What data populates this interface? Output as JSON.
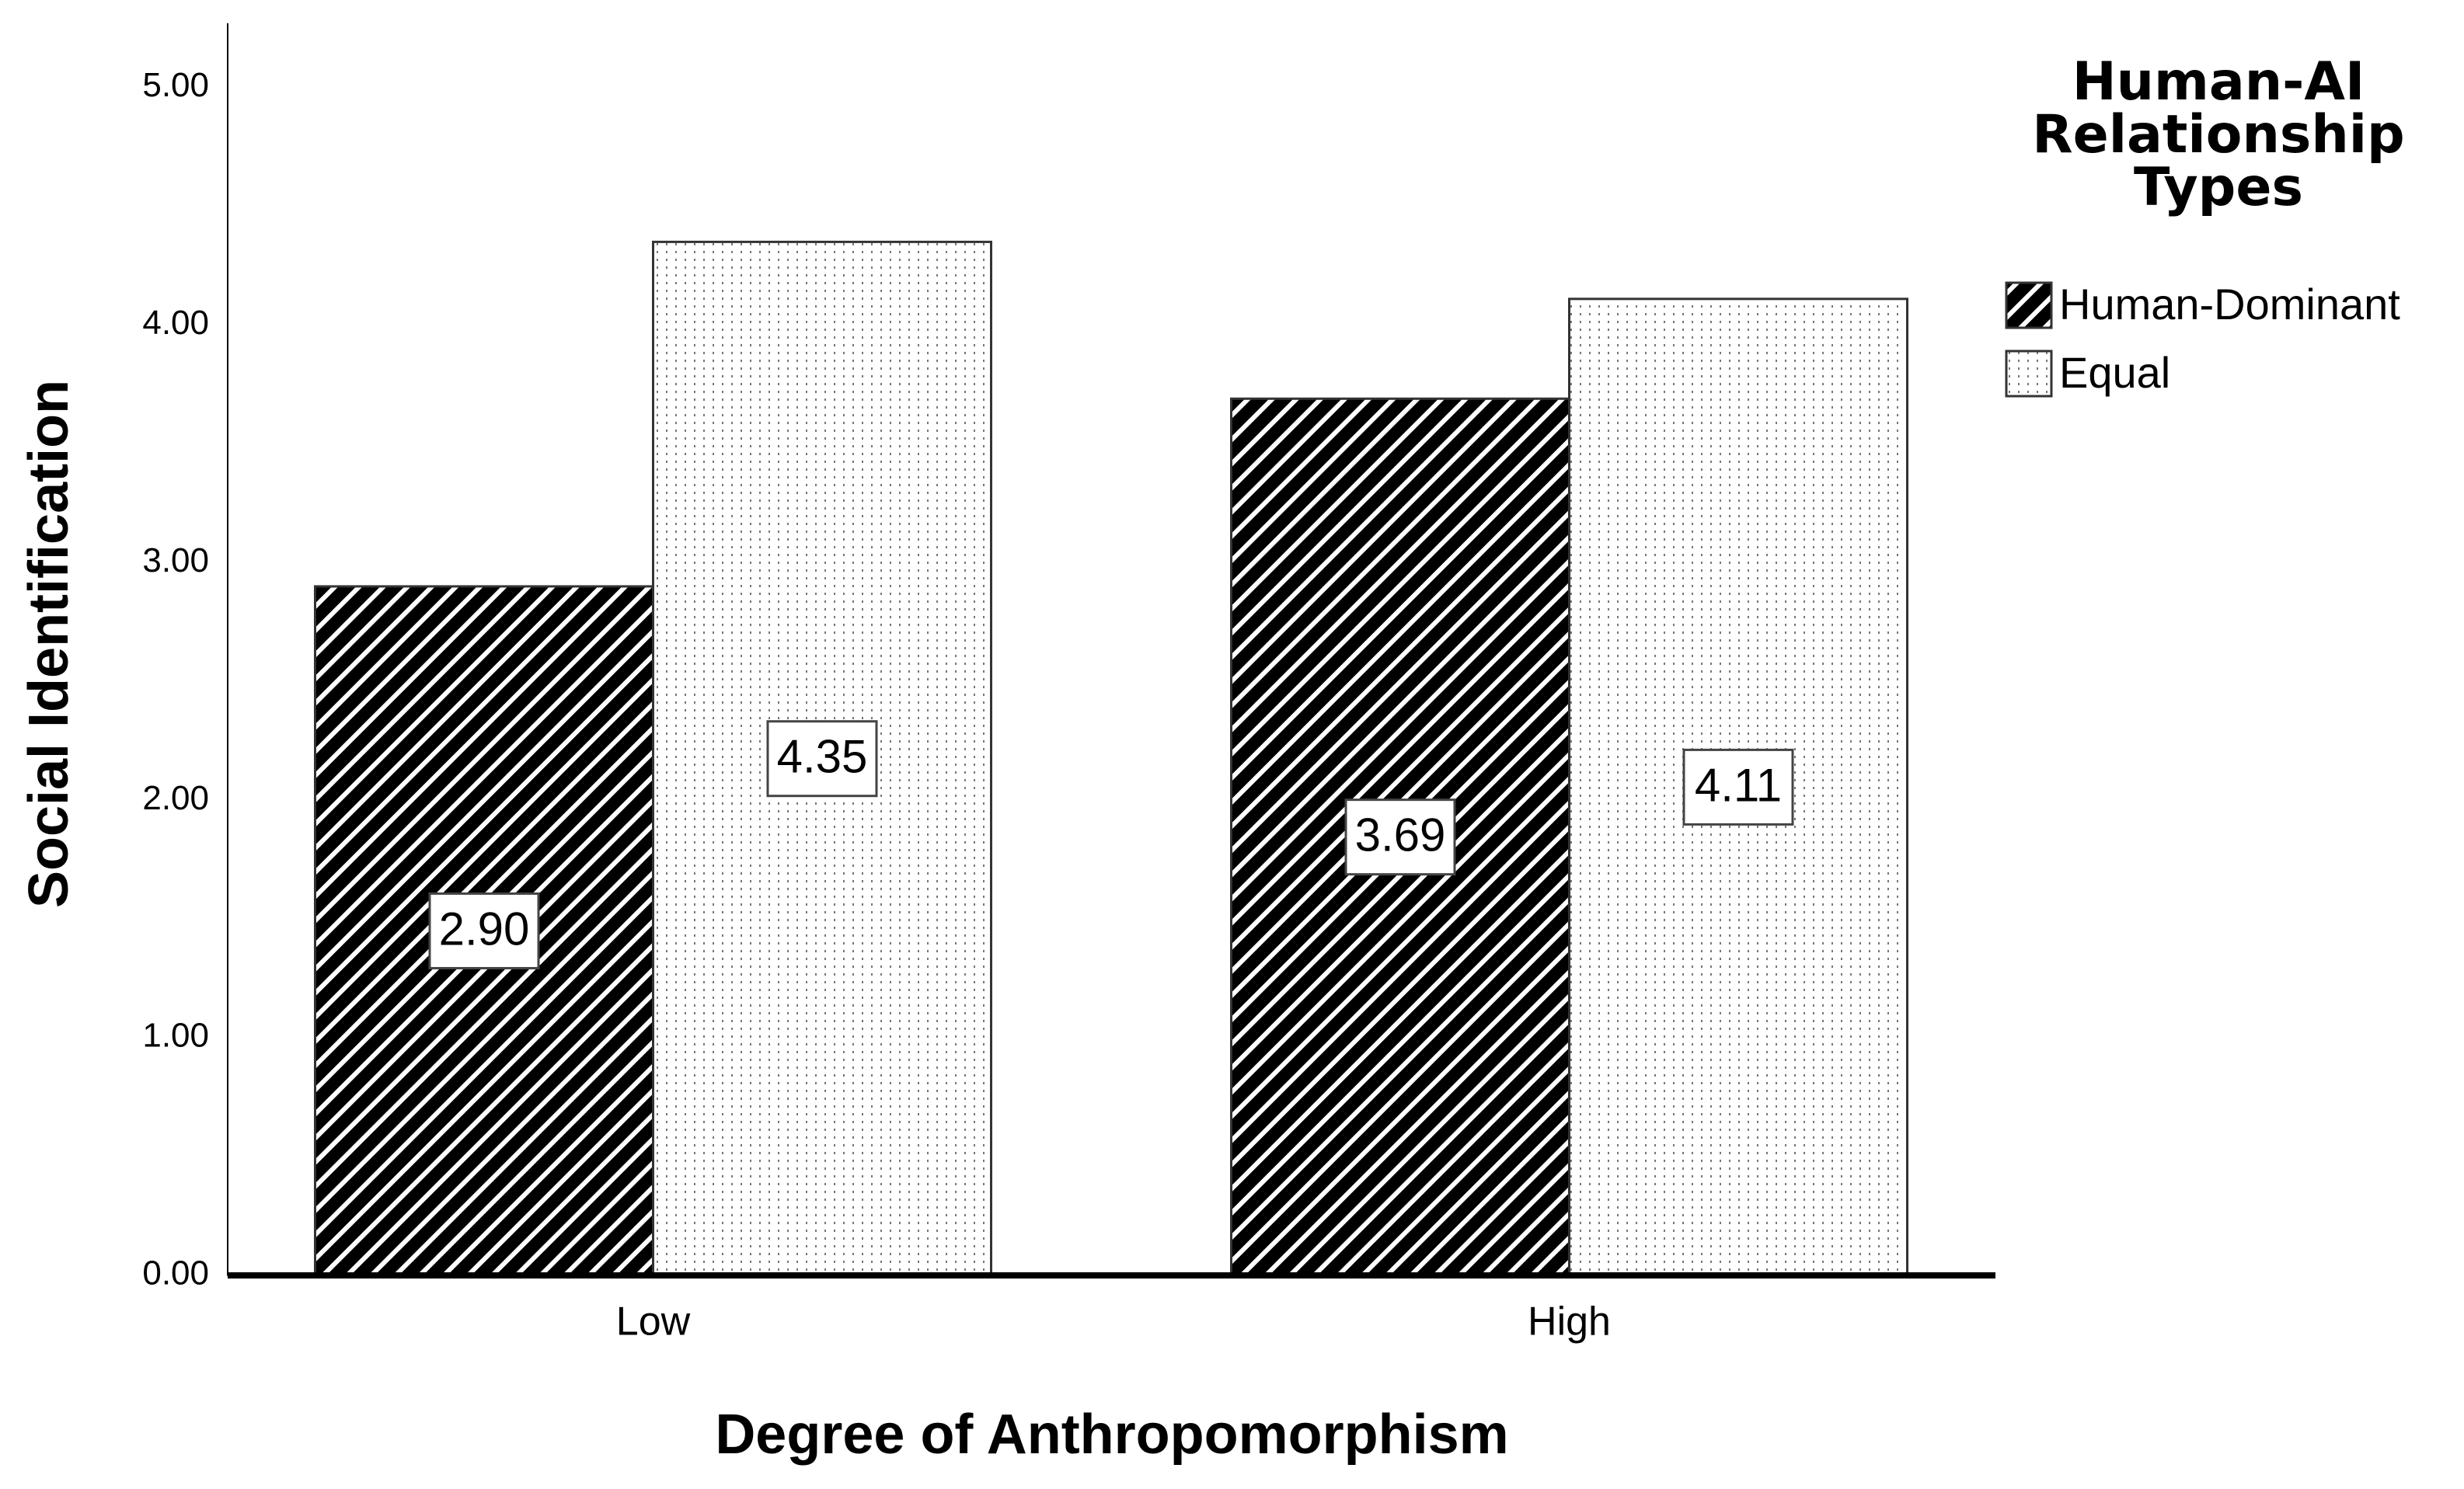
{
  "chart_data": {
    "type": "bar",
    "x_label": "Degree of Anthropomorphism",
    "y_label": "Social Identification",
    "legend_title": "Human-AI Relationship Types",
    "legend": "right",
    "categories": [
      "Low",
      "High"
    ],
    "series": [
      {
        "name": "Human-Dominant",
        "color": "#000000",
        "pattern": "hatch",
        "values": [
          2.9,
          3.69
        ],
        "value_labels": [
          "2.90",
          "3.69"
        ]
      },
      {
        "name": "Equal",
        "color": "#ffffff",
        "pattern": "dots",
        "values": [
          4.35,
          4.11
        ],
        "value_labels": [
          "4.35",
          "4.11"
        ]
      }
    ],
    "ylim": [
      0,
      5.27
    ],
    "yticks": [
      {
        "value": 0,
        "label": "0.00"
      },
      {
        "value": 1,
        "label": "1.00"
      },
      {
        "value": 2,
        "label": "2.00"
      },
      {
        "value": 3,
        "label": "3.00"
      },
      {
        "value": 4,
        "label": "4.00"
      },
      {
        "value": 5,
        "label": "5.00"
      }
    ],
    "grid": false
  }
}
